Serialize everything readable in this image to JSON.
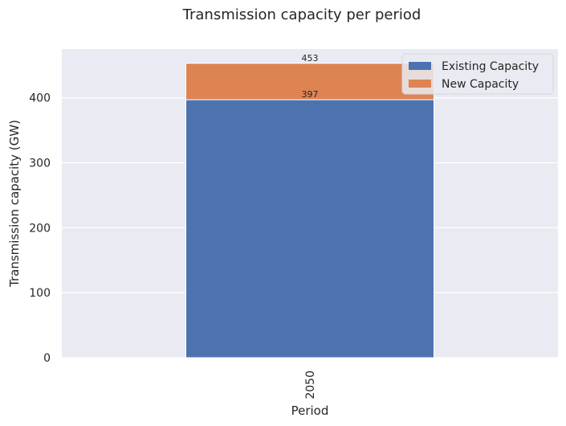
{
  "chart_data": {
    "type": "bar",
    "stacked": true,
    "title": "Transmission capacity per period",
    "xlabel": "Period",
    "ylabel": "Transmission capacity (GW)",
    "categories": [
      "2050"
    ],
    "series": [
      {
        "name": "Existing Capacity",
        "values": [
          397
        ],
        "color": "#4c72b0"
      },
      {
        "name": "New Capacity",
        "values": [
          56
        ],
        "color": "#dd8452"
      }
    ],
    "data_labels": [
      "397",
      "453"
    ],
    "ylim": [
      0,
      475
    ],
    "yticks": [
      0,
      100,
      200,
      300,
      400
    ],
    "grid": true,
    "legend_position": "upper-right",
    "background_color": "#eaeaf2"
  }
}
